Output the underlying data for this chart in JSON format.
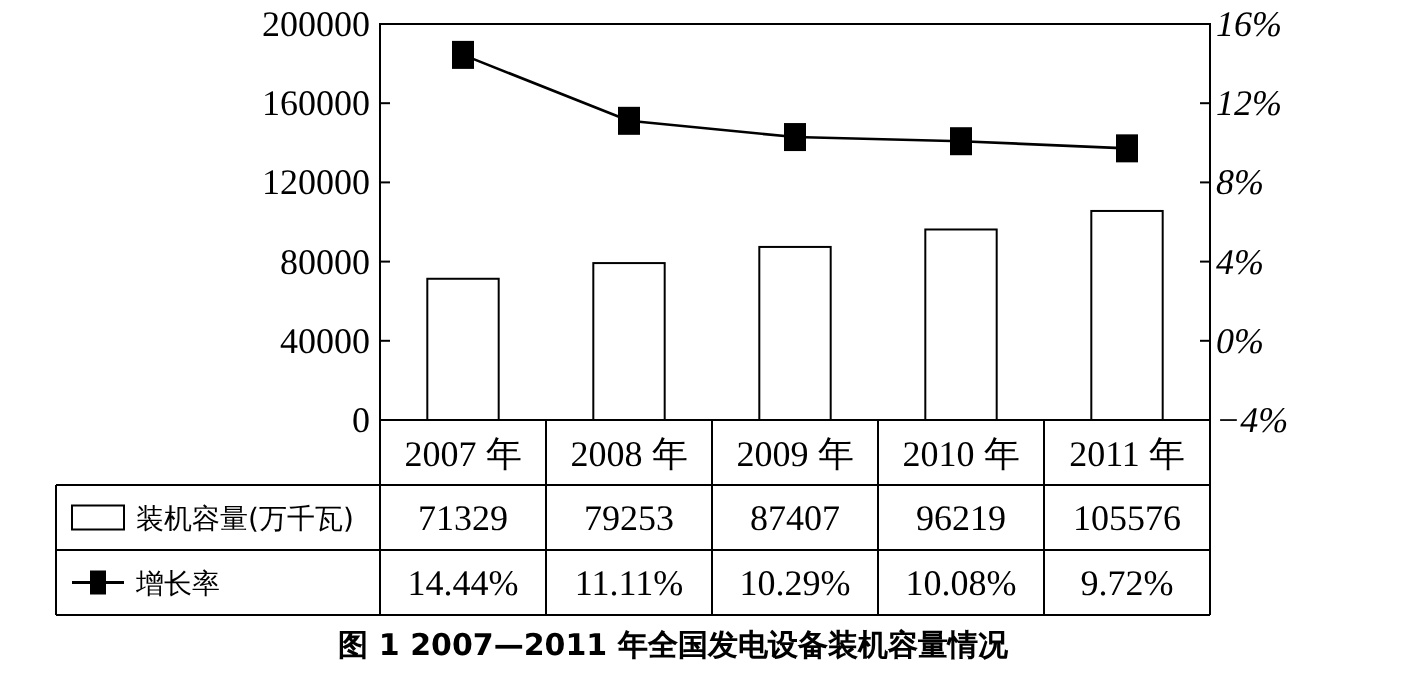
{
  "chart_data": {
    "type": "bar",
    "title": "图 1  2007—2011 年全国发电设备装机容量情况",
    "categories": [
      "2007 年",
      "2008 年",
      "2009 年",
      "2010 年",
      "2011 年"
    ],
    "series": [
      {
        "name": "装机容量(万千瓦)",
        "color": "#ffffff",
        "values": [
          71329,
          79253,
          87407,
          96219,
          105576
        ],
        "value_labels": [
          "71329",
          "79253",
          "87407",
          "96219",
          "105576"
        ]
      },
      {
        "name": "增长率",
        "type": "line",
        "axis": "y2",
        "color": "#000000",
        "marker": "square",
        "values": [
          14.44,
          11.11,
          10.29,
          10.08,
          9.72
        ],
        "value_labels": [
          "14.44%",
          "11.11%",
          "10.29%",
          "10.08%",
          "9.72%"
        ]
      }
    ],
    "ylim": [
      0,
      200000
    ],
    "yticks": [
      0,
      40000,
      80000,
      120000,
      160000,
      200000
    ],
    "y2lim": [
      -4,
      16
    ],
    "y2ticks": [
      {
        "value": -4,
        "label": "−4%"
      },
      {
        "value": 0,
        "label": "0%"
      },
      {
        "value": 4,
        "label": "4%"
      },
      {
        "value": 8,
        "label": "8%"
      },
      {
        "value": 12,
        "label": "12%"
      },
      {
        "value": 16,
        "label": "16%"
      }
    ],
    "legend": "bottom",
    "grid": false
  }
}
